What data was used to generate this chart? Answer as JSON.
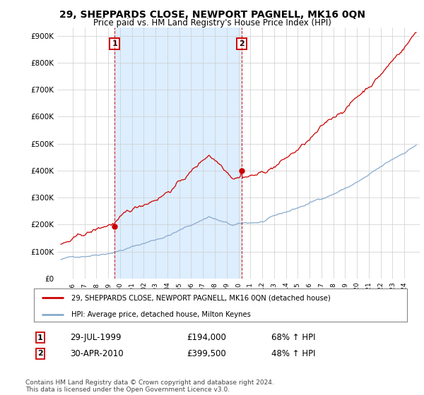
{
  "title": "29, SHEPPARDS CLOSE, NEWPORT PAGNELL, MK16 0QN",
  "subtitle": "Price paid vs. HM Land Registry's House Price Index (HPI)",
  "legend_line1": "29, SHEPPARDS CLOSE, NEWPORT PAGNELL, MK16 0QN (detached house)",
  "legend_line2": "HPI: Average price, detached house, Milton Keynes",
  "footer": "Contains HM Land Registry data © Crown copyright and database right 2024.\nThis data is licensed under the Open Government Licence v3.0.",
  "sale1_price": 194000,
  "sale1_label": "29-JUL-1999",
  "sale1_amount": "£194,000",
  "sale1_hpi": "68% ↑ HPI",
  "sale2_price": 399500,
  "sale2_label": "30-APR-2010",
  "sale2_amount": "£399,500",
  "sale2_hpi": "48% ↑ HPI",
  "ylim": [
    0,
    930000
  ],
  "yticks": [
    0,
    100000,
    200000,
    300000,
    400000,
    500000,
    600000,
    700000,
    800000,
    900000
  ],
  "ytick_labels": [
    "£0",
    "£100K",
    "£200K",
    "£300K",
    "£400K",
    "£500K",
    "£600K",
    "£700K",
    "£800K",
    "£900K"
  ],
  "property_color": "#cc0000",
  "hpi_color": "#88aacc",
  "shade_color": "#ddeeff",
  "background_color": "#ffffff",
  "grid_color": "#cccccc"
}
